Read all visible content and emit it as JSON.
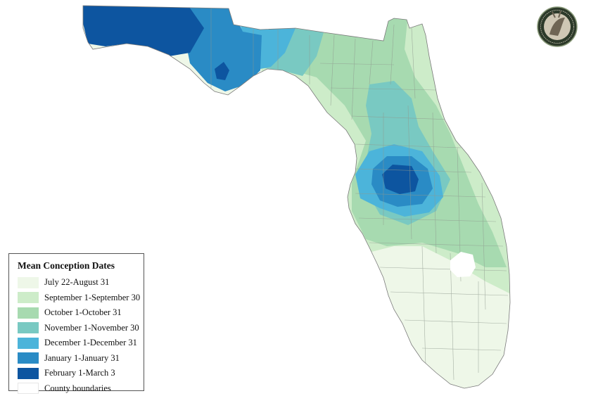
{
  "legend": {
    "title": "Mean Conception Dates",
    "items": [
      {
        "label": "July 22-August 31",
        "color": "#eef7e8"
      },
      {
        "label": "September 1-September 30",
        "color": "#cdecc9"
      },
      {
        "label": "October 1-October 31",
        "color": "#a7dab0"
      },
      {
        "label": "November 1-November 30",
        "color": "#79c9c2"
      },
      {
        "label": "December 1-December 31",
        "color": "#4cb4da"
      },
      {
        "label": "January 1-January 31",
        "color": "#2a8bc5"
      },
      {
        "label": "February 1-March 3",
        "color": "#0d55a0"
      },
      {
        "label": "County boundaries",
        "color": "#ffffff"
      }
    ]
  },
  "logo": {
    "text": "FLORIDA FISH AND WILDLIFE CONSERVATION COMMISSION"
  }
}
